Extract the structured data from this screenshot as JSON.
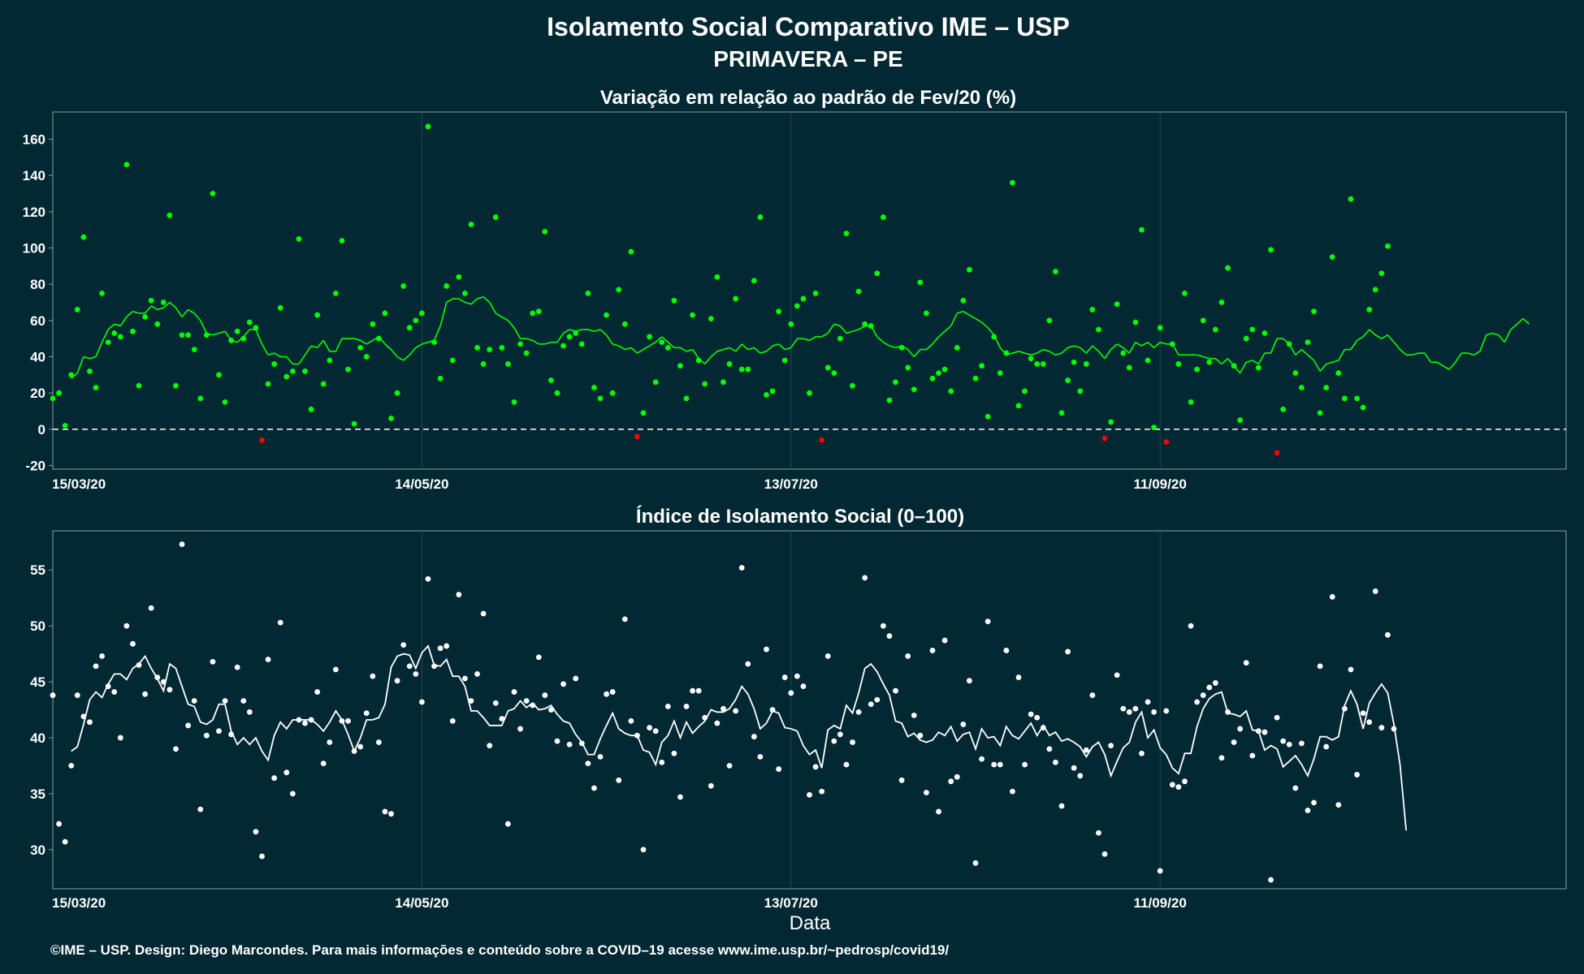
{
  "header": {
    "title_line1": "Isolamento Social Comparativo IME – USP",
    "title_line2": "PRIMAVERA – PE"
  },
  "footer": {
    "xlabel": "Data",
    "credit": "©IME – USP. Design: Diego Marcondes. Para mais informações e conteúdo sobre a COVID–19 acesse www.ime.usp.br/~pedrosp/covid19/"
  },
  "colors": {
    "background": "#022833",
    "panel_border": "#8a9ea3",
    "gridline": "#1f4a55",
    "positive": "#00ff00",
    "negative": "#ff0000",
    "index_points": "#ffffff"
  },
  "chart_data": [
    {
      "type": "scatter",
      "title": "Variação em relação ao padrão de Fev/20 (%)",
      "start_date": "2020-03-15",
      "xticks": [
        "15/03/20",
        "14/05/20",
        "13/07/20",
        "11/09/20"
      ],
      "yticks": [
        -20,
        0,
        20,
        40,
        60,
        80,
        100,
        120,
        140,
        160
      ],
      "ylim": [
        -22,
        175
      ],
      "reference_line": 0,
      "values": [
        17,
        20,
        2,
        30,
        66,
        106,
        32,
        23,
        75,
        48,
        53,
        51,
        146,
        54,
        24,
        62,
        71,
        58,
        70,
        118,
        24,
        52,
        52,
        44,
        17,
        52,
        130,
        30,
        15,
        49,
        54,
        50,
        59,
        56,
        -6,
        25,
        36,
        67,
        29,
        32,
        105,
        32,
        11,
        63,
        25,
        38,
        75,
        104,
        33,
        3,
        45,
        40,
        58,
        50,
        64,
        6,
        20,
        79,
        56,
        60,
        64,
        167,
        48,
        28,
        79,
        38,
        84,
        75,
        113,
        45,
        36,
        44,
        117,
        45,
        36,
        15,
        47,
        42,
        64,
        65,
        109,
        27,
        20,
        46,
        51,
        53,
        47,
        75,
        23,
        17,
        63,
        20,
        77,
        58,
        98,
        -4,
        9,
        51,
        26,
        48,
        45,
        71,
        35,
        17,
        63,
        38,
        25,
        61,
        84,
        26,
        36,
        72,
        33,
        33,
        82,
        117,
        19,
        21,
        65,
        38,
        58,
        68,
        72,
        20,
        75,
        -6,
        34,
        31,
        50,
        108,
        24,
        76,
        58,
        57,
        86,
        117,
        16,
        26,
        45,
        34,
        22,
        81,
        64,
        28,
        31,
        33,
        21,
        45,
        71,
        88,
        28,
        35,
        7,
        51,
        31,
        42,
        136,
        13,
        21,
        39,
        36,
        36,
        60,
        87,
        9,
        27,
        37,
        21,
        36,
        66,
        55,
        -5,
        4,
        69,
        42,
        34,
        59,
        110,
        38,
        1,
        56,
        -7,
        47,
        36,
        75,
        15,
        33,
        60,
        37,
        55,
        70,
        89,
        35,
        5,
        50,
        55,
        34,
        53,
        99,
        -13,
        11,
        47,
        31,
        23,
        48,
        65,
        9,
        23,
        95,
        31,
        17,
        127,
        17,
        12,
        66,
        77,
        86,
        101
      ],
      "trend": [
        28,
        31,
        40,
        39,
        40,
        48,
        55,
        58,
        57,
        62,
        65,
        64,
        64,
        68,
        66,
        67,
        70,
        67,
        62,
        66,
        64,
        60,
        53,
        52,
        53,
        54,
        49,
        48,
        51,
        55,
        55,
        47,
        41,
        42,
        40,
        40,
        36,
        36,
        41,
        46,
        45,
        49,
        43,
        43,
        50,
        50,
        50,
        49,
        47,
        49,
        51,
        47,
        44,
        40,
        38,
        41,
        45,
        47,
        48,
        49,
        57,
        70,
        72,
        72,
        70,
        69,
        72,
        73,
        70,
        64,
        62,
        60,
        56,
        50,
        50,
        49,
        47,
        47,
        48,
        48,
        53,
        55,
        54,
        55,
        55,
        54,
        55,
        52,
        47,
        46,
        44,
        45,
        42,
        44,
        46,
        48,
        51,
        48,
        45,
        45,
        43,
        44,
        39,
        36,
        40,
        43,
        44,
        45,
        43,
        47,
        44,
        45,
        42,
        43,
        46,
        47,
        44,
        45,
        50,
        50,
        49,
        51,
        51,
        53,
        58,
        57,
        53,
        54,
        55,
        57,
        57,
        51,
        48,
        46,
        45,
        46,
        44,
        40,
        44,
        44,
        47,
        51,
        54,
        57,
        64,
        65,
        63,
        61,
        59,
        56,
        52,
        45,
        41,
        42,
        43,
        42,
        41,
        42,
        44,
        43,
        41,
        42,
        45,
        46,
        45,
        42,
        46,
        43,
        39,
        44,
        47,
        45,
        42,
        48,
        46,
        48,
        45,
        48,
        47,
        47,
        41,
        41,
        41,
        41,
        40,
        39,
        39,
        36,
        39,
        35,
        31,
        37,
        38,
        36,
        42,
        42,
        50,
        50,
        47,
        41,
        44,
        41,
        38,
        32,
        36,
        37,
        38,
        44,
        44,
        49,
        51,
        55,
        52,
        50,
        52,
        48,
        44,
        41,
        41,
        42,
        42,
        37,
        37,
        35,
        33,
        37,
        42,
        42,
        41,
        43,
        52,
        53,
        52,
        48,
        55,
        58,
        61,
        58
      ]
    },
    {
      "type": "scatter",
      "title": "Índice de Isolamento Social (0–100)",
      "start_date": "2020-03-15",
      "xticks": [
        "15/03/20",
        "14/05/20",
        "13/07/20",
        "11/09/20"
      ],
      "yticks": [
        30,
        35,
        40,
        45,
        50,
        55
      ],
      "ylim": [
        26.5,
        58.5
      ],
      "values": [
        43.8,
        32.3,
        30.7,
        37.5,
        43.8,
        41.9,
        41.4,
        46.4,
        47.3,
        44.6,
        44.1,
        40.0,
        50.0,
        48.4,
        46.5,
        43.9,
        51.6,
        45.4,
        45.0,
        44.3,
        39.0,
        57.3,
        41.1,
        43.3,
        33.6,
        40.2,
        46.8,
        40.6,
        43.3,
        40.3,
        46.3,
        43.3,
        42.3,
        31.6,
        29.4,
        47.0,
        36.4,
        50.3,
        36.9,
        35.0,
        41.6,
        41.3,
        41.6,
        44.1,
        37.7,
        39.6,
        46.1,
        41.5,
        41.5,
        38.8,
        39.2,
        42.2,
        45.5,
        39.6,
        33.4,
        33.2,
        45.1,
        48.3,
        46.4,
        45.7,
        43.2,
        54.2,
        46.4,
        48.0,
        48.2,
        41.5,
        52.8,
        45.3,
        43.3,
        45.7,
        51.1,
        39.3,
        43.1,
        41.7,
        32.3,
        44.1,
        40.8,
        43.3,
        42.9,
        47.2,
        43.8,
        42.5,
        39.7,
        44.8,
        39.4,
        45.3,
        39.5,
        37.7,
        35.5,
        38.3,
        43.9,
        44.1,
        36.2,
        50.6,
        41.5,
        40.2,
        30.0,
        40.9,
        40.6,
        37.8,
        42.8,
        38.6,
        34.7,
        42.8,
        44.2,
        44.2,
        41.8,
        35.7,
        41.3,
        42.6,
        37.5,
        42.4,
        55.2,
        46.6,
        40.1,
        38.3,
        47.9,
        42.5,
        37.2,
        45.4,
        44.0,
        45.5,
        44.6,
        34.9,
        37.4,
        35.2,
        47.3,
        39.7,
        40.3,
        37.6,
        39.6,
        42.3,
        54.3,
        43.0,
        43.4,
        50.0,
        49.1,
        44.2,
        36.2,
        47.3,
        42.0,
        40.2,
        35.1,
        47.8,
        33.4,
        48.7,
        36.1,
        36.5,
        41.2,
        45.1,
        28.8,
        38.1,
        50.4,
        37.6,
        37.6,
        47.8,
        35.2,
        45.4,
        37.6,
        42.1,
        41.8,
        40.9,
        39.0,
        37.8,
        33.9,
        47.7,
        37.3,
        36.6,
        38.9,
        43.8,
        31.5,
        29.6,
        39.3,
        45.6,
        42.6,
        42.3,
        42.6,
        38.6,
        43.2,
        42.3,
        28.1,
        42.4,
        35.8,
        35.6,
        36.1,
        50.0,
        43.2,
        43.8,
        44.5,
        44.9,
        38.2,
        42.3,
        39.6,
        40.8,
        46.7,
        38.4,
        40.6,
        40.5,
        27.3,
        41.8,
        39.7,
        39.4,
        35.5,
        39.5,
        33.5,
        34.2,
        46.4,
        39.2,
        52.6,
        34.0,
        42.6,
        46.1,
        36.7,
        42.2,
        41.4,
        53.1,
        40.9,
        49.2,
        40.8
      ],
      "trend": [
        38.8,
        39.2,
        41.2,
        43.4,
        44.1,
        43.6,
        44.8,
        45.7,
        45.7,
        45.2,
        46.2,
        46.6,
        47.3,
        46.2,
        45.3,
        44.2,
        46.6,
        46.2,
        44.6,
        43.0,
        42.8,
        41.4,
        41.2,
        41.6,
        43.0,
        43.0,
        40.6,
        39.4,
        40.0,
        39.4,
        40.0,
        38.8,
        38.0,
        40.2,
        41.4,
        40.8,
        41.6,
        41.6,
        41.6,
        41.6,
        41.2,
        40.6,
        41.4,
        42.4,
        41.6,
        40.3,
        38.8,
        40.0,
        41.6,
        41.6,
        41.8,
        43.0,
        46.3,
        47.3,
        47.5,
        47.4,
        46.2,
        47.6,
        48.2,
        46.5,
        46.4,
        47.0,
        45.5,
        45.5,
        44.6,
        42.4,
        42.4,
        41.8,
        41.1,
        41.1,
        41.1,
        42.4,
        42.6,
        43.3,
        42.7,
        43.1,
        42.5,
        42.6,
        42.9,
        42.1,
        41.5,
        41.3,
        40.3,
        39.6,
        38.5,
        38.5,
        39.9,
        41.1,
        42.2,
        40.8,
        40.4,
        40.2,
        40.2,
        38.9,
        38.7,
        37.6,
        39.6,
        40.2,
        41.5,
        40.0,
        41.4,
        40.4,
        41.0,
        41.5,
        42.5,
        42.3,
        42.3,
        42.6,
        43.4,
        44.6,
        43.9,
        42.6,
        40.8,
        41.3,
        42.4,
        42.2,
        40.9,
        40.8,
        40.6,
        39.3,
        38.5,
        38.9,
        37.3,
        40.7,
        41.1,
        40.8,
        42.9,
        42.2,
        44.0,
        46.2,
        46.6,
        45.9,
        44.8,
        43.8,
        41.5,
        41.3,
        40.1,
        40.4,
        39.8,
        39.6,
        39.8,
        40.5,
        40.2,
        41.0,
        39.7,
        40.3,
        40.5,
        39.0,
        40.8,
        40.0,
        40.1,
        39.3,
        41.0,
        40.2,
        39.9,
        40.6,
        41.3,
        40.2,
        41.1,
        40.2,
        40.5,
        39.7,
        39.9,
        39.6,
        39.2,
        38.3,
        39.2,
        39.6,
        38.5,
        36.6,
        37.9,
        39.1,
        39.6,
        41.4,
        42.3,
        40.0,
        40.7,
        39.1,
        38.5,
        37.3,
        36.8,
        38.6,
        38.6,
        41.0,
        42.6,
        43.5,
        43.9,
        44.1,
        42.2,
        42.1,
        41.9,
        42.4,
        40.7,
        40.6,
        38.9,
        39.3,
        39.0,
        37.4,
        37.9,
        38.4,
        37.6,
        36.6,
        38.1,
        40.1,
        40.1,
        39.8,
        40.1,
        42.9,
        44.2,
        43.0,
        40.8,
        43.1,
        44.0,
        44.8,
        44.0,
        41.2,
        37.6,
        31.7
      ]
    }
  ]
}
